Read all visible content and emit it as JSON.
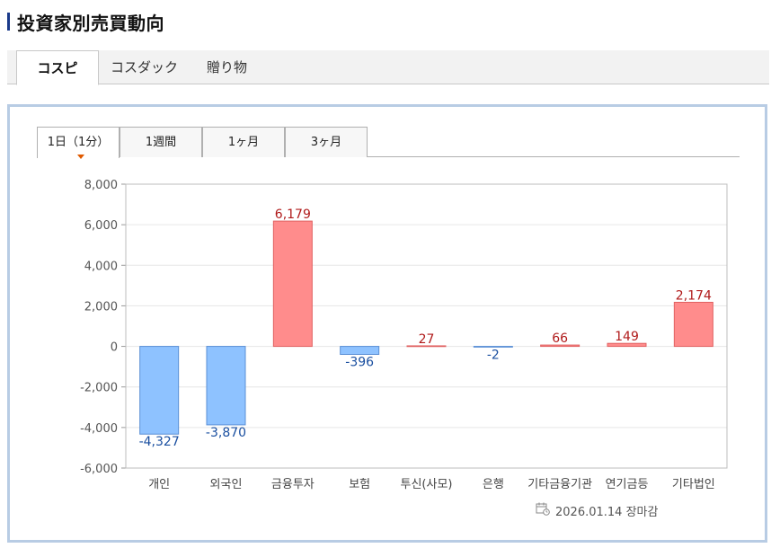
{
  "title": "投資家別売買動向",
  "market_tabs": [
    "コスピ",
    "コスダック",
    "贈り物"
  ],
  "period_tabs": [
    "1日（1分）",
    "1週間",
    "1ヶ月",
    "3ヶ月"
  ],
  "date_text": "2026.01.14 장마감",
  "colors": {
    "positive": "#ff8c8c",
    "positive_edge": "#e06060",
    "negative": "#8ec2ff",
    "negative_edge": "#5a8fd6",
    "pos_label": "#b01a1a",
    "neg_label": "#1a4fa0",
    "panel_border": "#b8cce4"
  },
  "chart_data": {
    "type": "bar",
    "categories": [
      "개인",
      "외국인",
      "금융투자",
      "보험",
      "투신(사모)",
      "은행",
      "기타금융기관",
      "연기금등",
      "기타법인"
    ],
    "values": [
      -4327,
      -3870,
      6179,
      -396,
      27,
      -2,
      66,
      149,
      2174
    ],
    "value_labels": [
      "-4,327",
      "-3,870",
      "6,179",
      "-396",
      "27",
      "-2",
      "66",
      "149",
      "2,174"
    ],
    "yticks": [
      "8,000",
      "6,000",
      "4,000",
      "2,000",
      "0",
      "-2,000",
      "-4,000",
      "-6,000"
    ],
    "ylim": [
      -6000,
      8000
    ],
    "grid": true
  }
}
